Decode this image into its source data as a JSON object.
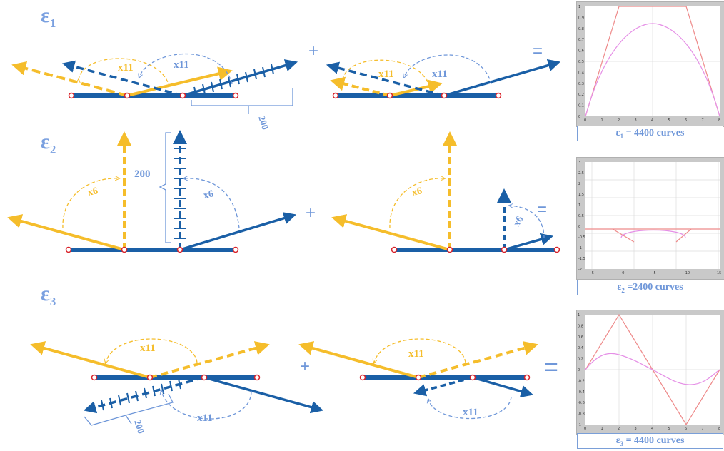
{
  "rows": [
    {
      "label_main": "ε",
      "label_sub": "1",
      "plus": "+",
      "equals": "=",
      "mult_a": "x11",
      "mult_b": "x11",
      "mult_c": "x11",
      "mult_d": "x11",
      "count": "200",
      "caption_main": "ε",
      "caption_sub": "1",
      "caption_rest": " = 4400 curves"
    },
    {
      "label_main": "ε",
      "label_sub": "2",
      "plus": "+",
      "equals": "=",
      "mult_a": "x6",
      "mult_b": "x6",
      "mult_c": "x6",
      "mult_d": "x6",
      "count": "200",
      "caption_main": "ε",
      "caption_sub": "2",
      "caption_rest": " =2400 curves"
    },
    {
      "label_main": "ε",
      "label_sub": "3",
      "plus": "+",
      "equals": "=",
      "mult_a": "x11",
      "mult_b": "x11",
      "mult_c": "x11",
      "mult_d": "x11",
      "count": "200",
      "caption_main": "ε",
      "caption_sub": "3",
      "caption_rest": " = 4400 curves"
    }
  ],
  "colors": {
    "blue": "#1a5fa6",
    "yellow": "#f5bd2b",
    "label": "#6f97d9",
    "node": "#d9232a",
    "curve_red": "#ee8a8a",
    "curve_pink": "#e58fe6"
  },
  "plot1": {
    "xticks": [
      "0",
      "1",
      "2",
      "3",
      "4",
      "5",
      "6",
      "7",
      "8"
    ],
    "yticks": [
      "0",
      "0.1",
      "0.2",
      "0.3",
      "0.4",
      "0.5",
      "0.6",
      "0.7",
      "0.8",
      "0.9",
      "1"
    ]
  },
  "plot2": {
    "xticks": [
      "-5",
      "0",
      "5",
      "10",
      "15"
    ],
    "yticks": [
      "-2",
      "-1.5",
      "-1",
      "-0.5",
      "0",
      "0.5",
      "1",
      "1.5",
      "2",
      "2.5",
      "3"
    ]
  },
  "plot3": {
    "xticks": [
      "0",
      "1",
      "2",
      "3",
      "4",
      "5",
      "6",
      "7",
      "8"
    ],
    "yticks": [
      "-1",
      "-0.8",
      "-0.6",
      "-0.4",
      "-0.2",
      "0",
      "0.2",
      "0.4",
      "0.6",
      "0.8",
      "1"
    ]
  }
}
